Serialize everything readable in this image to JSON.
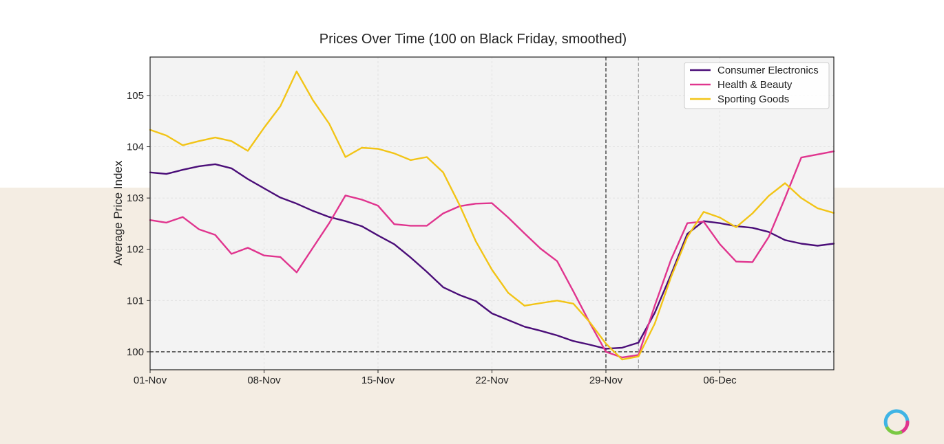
{
  "chart_data": {
    "type": "line",
    "title": "Prices Over Time (100 on Black Friday, smoothed)",
    "xlabel": "",
    "ylabel": "Average Price Index",
    "xlim": [
      0,
      42
    ],
    "ylim": [
      99.65,
      105.75
    ],
    "grid": true,
    "legend_position": "top-right",
    "x_ticks": [
      {
        "value": 0,
        "label": "01-Nov"
      },
      {
        "value": 7,
        "label": "08-Nov"
      },
      {
        "value": 14,
        "label": "15-Nov"
      },
      {
        "value": 21,
        "label": "22-Nov"
      },
      {
        "value": 28,
        "label": "29-Nov"
      },
      {
        "value": 35,
        "label": "06-Dec"
      }
    ],
    "y_ticks": [
      100,
      101,
      102,
      103,
      104,
      105
    ],
    "reference_lines": [
      {
        "axis": "y",
        "value": 100,
        "style": "dashed",
        "color": "#222222"
      },
      {
        "axis": "x",
        "value": 28,
        "style": "dashed",
        "color": "#222222"
      },
      {
        "axis": "x",
        "value": 30,
        "style": "dashed",
        "color": "#999999"
      }
    ],
    "x": [
      0,
      1,
      2,
      3,
      4,
      5,
      6,
      7,
      8,
      9,
      10,
      11,
      12,
      13,
      14,
      15,
      16,
      17,
      18,
      19,
      20,
      21,
      22,
      23,
      24,
      25,
      26,
      27,
      28,
      29,
      30,
      31,
      32,
      33,
      34,
      35,
      36,
      37,
      38,
      39,
      40,
      41,
      42
    ],
    "series": [
      {
        "name": "Consumer Electronics",
        "color": "#4a0d78",
        "values": [
          103.5,
          103.47,
          103.55,
          103.62,
          103.66,
          103.58,
          103.37,
          103.19,
          103.01,
          102.89,
          102.75,
          102.63,
          102.55,
          102.45,
          102.27,
          102.1,
          101.84,
          101.56,
          101.26,
          101.11,
          100.99,
          100.75,
          100.62,
          100.49,
          100.41,
          100.32,
          100.21,
          100.14,
          100.06,
          100.08,
          100.18,
          100.76,
          101.51,
          102.3,
          102.55,
          102.51,
          102.45,
          102.42,
          102.34,
          102.18,
          102.11,
          102.07,
          102.11
        ]
      },
      {
        "name": "Health & Beauty",
        "color": "#e0348e",
        "values": [
          102.57,
          102.52,
          102.63,
          102.39,
          102.28,
          101.91,
          102.03,
          101.88,
          101.85,
          101.55,
          102.03,
          102.51,
          103.05,
          102.97,
          102.85,
          102.49,
          102.46,
          102.46,
          102.7,
          102.84,
          102.89,
          102.9,
          102.62,
          102.31,
          102.01,
          101.77,
          101.18,
          100.57,
          100.0,
          99.89,
          99.94,
          100.9,
          101.8,
          102.51,
          102.54,
          102.1,
          101.76,
          101.75,
          102.24,
          103.0,
          103.79,
          103.85,
          103.91
        ]
      },
      {
        "name": "Sporting Goods",
        "color": "#f2c416",
        "values": [
          104.33,
          104.22,
          104.03,
          104.11,
          104.18,
          104.11,
          103.92,
          104.37,
          104.79,
          105.47,
          104.91,
          104.45,
          103.8,
          103.98,
          103.96,
          103.87,
          103.74,
          103.8,
          103.5,
          102.87,
          102.16,
          101.6,
          101.15,
          100.9,
          100.95,
          101.0,
          100.94,
          100.58,
          100.16,
          99.85,
          99.91,
          100.55,
          101.46,
          102.24,
          102.73,
          102.62,
          102.43,
          102.7,
          103.04,
          103.29,
          103.0,
          102.8,
          102.71
        ]
      }
    ]
  }
}
